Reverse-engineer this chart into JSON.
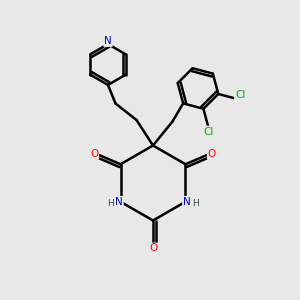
{
  "bg_color": "#e8e8e8",
  "bond_color": "#000000",
  "bond_width": 1.8,
  "atom_colors": {
    "N": "#0000cd",
    "O": "#ff0000",
    "Cl": "#00aa00",
    "C": "#000000",
    "H": "#2f4f4f"
  },
  "font_size": 7.5
}
